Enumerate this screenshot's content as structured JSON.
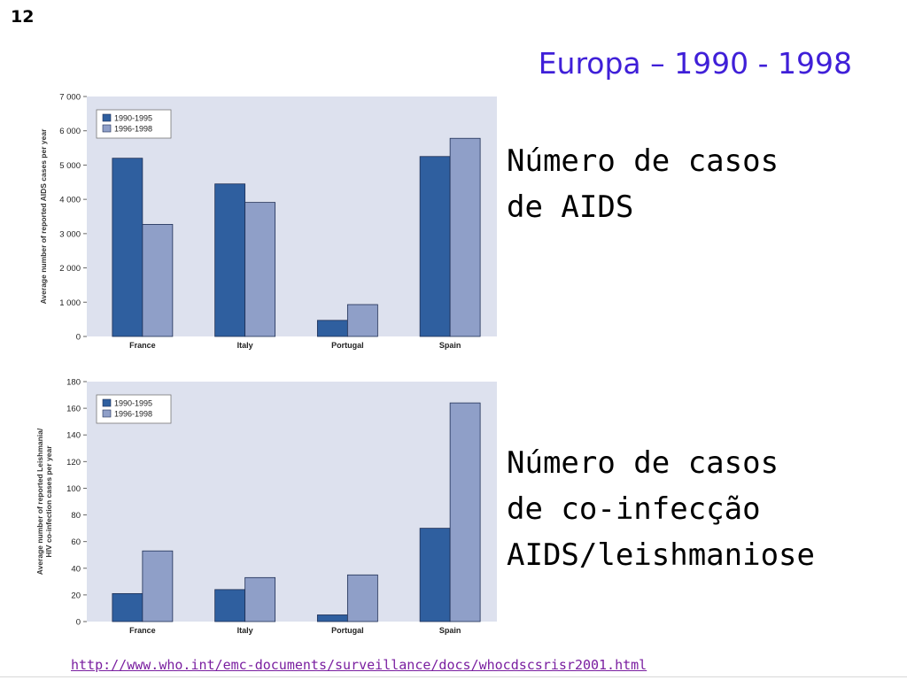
{
  "slide_number": "12",
  "title": "Europa – 1990 - 1998",
  "desc1": "Número de casos\nde AIDS",
  "desc2": "Número de casos\nde co-infecção\nAIDS/leishmaniose",
  "source_url": "http://www.who.int/emc-documents/surveillance/docs/whocdscsrisr2001.html",
  "colors": {
    "series1": "#2f5f9f",
    "series2": "#8f9fc8",
    "plot_bg": "#dde1ee"
  },
  "chart_data": [
    {
      "type": "bar",
      "categories": [
        "France",
        "Italy",
        "Portugal",
        "Spain"
      ],
      "series": [
        {
          "name": "1990-1995",
          "values": [
            5200,
            4450,
            470,
            5250
          ]
        },
        {
          "name": "1996-1998",
          "values": [
            3270,
            3910,
            930,
            5780
          ]
        }
      ],
      "ylabel": "Average number of reported AIDS cases per year",
      "ylim": [
        0,
        7000
      ],
      "yticks": [
        0,
        1000,
        2000,
        3000,
        4000,
        5000,
        6000,
        7000
      ],
      "ytick_labels": [
        "0",
        "1 000",
        "2 000",
        "3 000",
        "4 000",
        "5 000",
        "6 000",
        "7 000"
      ],
      "grid": false,
      "legend": "top-left"
    },
    {
      "type": "bar",
      "categories": [
        "France",
        "Italy",
        "Portugal",
        "Spain"
      ],
      "series": [
        {
          "name": "1990-1995",
          "values": [
            21,
            24,
            5,
            70
          ]
        },
        {
          "name": "1996-1998",
          "values": [
            53,
            33,
            35,
            164
          ]
        }
      ],
      "ylabel": "Average number of reported Leishmania/HIV co-infection cases per year",
      "ylabel_lines": [
        "Average number of reported Leishmania/",
        "HIV co-infection cases per year"
      ],
      "ylim": [
        0,
        180
      ],
      "yticks": [
        0,
        20,
        40,
        60,
        80,
        100,
        120,
        140,
        160,
        180
      ],
      "ytick_labels": [
        "0",
        "20",
        "40",
        "60",
        "80",
        "100",
        "120",
        "140",
        "160",
        "180"
      ],
      "grid": false,
      "legend": "top-left"
    }
  ]
}
